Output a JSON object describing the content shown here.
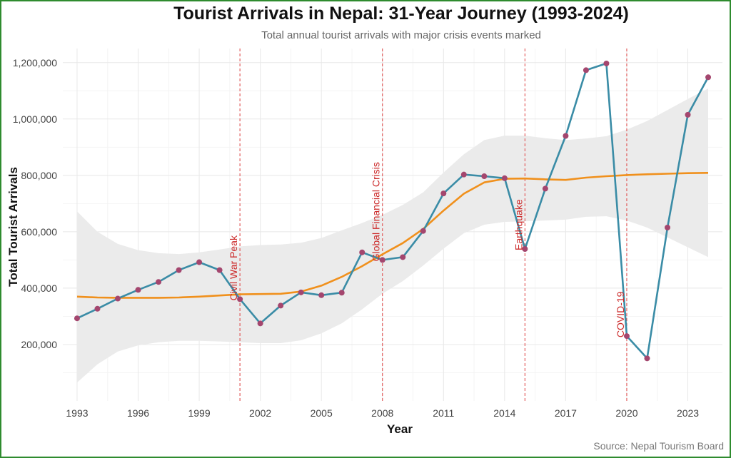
{
  "chart_data": {
    "type": "line",
    "title": "Tourist Arrivals in Nepal: 31-Year Journey (1993-2024)",
    "subtitle": "Total annual tourist arrivals with major crisis events marked",
    "xlabel": "Year",
    "ylabel": "Total Tourist Arrivals",
    "caption": "Source: Nepal Tourism Board",
    "xlim": [
      1992.3,
      2024.7
    ],
    "ylim": [
      0,
      1250000
    ],
    "grid": true,
    "x_ticks": [
      1993,
      1996,
      1999,
      2002,
      2005,
      2008,
      2011,
      2014,
      2017,
      2020,
      2023
    ],
    "y_ticks": [
      200000,
      400000,
      600000,
      800000,
      1000000,
      1200000
    ],
    "y_tick_labels": [
      "200,000",
      "400,000",
      "600,000",
      "800,000",
      "1,000,000",
      "1,200,000"
    ],
    "series": [
      {
        "x": [
          1993,
          1994,
          1995,
          1996,
          1997,
          1998,
          1999,
          2000,
          2001,
          2002,
          2003,
          2004,
          2005,
          2006,
          2007,
          2008,
          2009,
          2010,
          2011,
          2012,
          2013,
          2014,
          2015,
          2016,
          2017,
          2018,
          2019,
          2020,
          2021,
          2022,
          2023,
          2024
        ],
        "values": [
          293000,
          327000,
          363000,
          394000,
          422000,
          464000,
          492000,
          464000,
          361000,
          275000,
          338000,
          385000,
          375000,
          384000,
          527000,
          500000,
          510000,
          603000,
          736000,
          803000,
          797000,
          790000,
          539000,
          753000,
          940000,
          1173000,
          1197000,
          230000,
          151000,
          615000,
          1015000,
          1148000
        ],
        "line_color": "#3a8ca6",
        "point_color": "#a4466e"
      },
      {
        "type": "smooth",
        "x": [
          1993,
          1994,
          1995,
          1996,
          1997,
          1998,
          1999,
          2000,
          2001,
          2002,
          2003,
          2004,
          2005,
          2006,
          2007,
          2008,
          2009,
          2010,
          2011,
          2012,
          2013,
          2014,
          2015,
          2016,
          2017,
          2018,
          2019,
          2020,
          2021,
          2022,
          2023,
          2024
        ],
        "values": [
          370000,
          367000,
          366000,
          366000,
          366000,
          367000,
          370000,
          374000,
          378000,
          379000,
          380000,
          388000,
          409000,
          440000,
          478000,
          520000,
          560000,
          610000,
          675000,
          735000,
          775000,
          788000,
          789000,
          786000,
          784000,
          792000,
          797000,
          801000,
          804000,
          806000,
          808000,
          809000
        ],
        "lower": [
          65000,
          130000,
          175000,
          197000,
          208000,
          213000,
          213000,
          211000,
          208000,
          205000,
          205000,
          215000,
          240000,
          275000,
          325000,
          380000,
          425000,
          480000,
          540000,
          595000,
          625000,
          635000,
          637000,
          640000,
          643000,
          653000,
          655000,
          640000,
          615000,
          580000,
          545000,
          510000
        ],
        "upper": [
          672000,
          600000,
          557000,
          535000,
          524000,
          521000,
          527000,
          537000,
          548000,
          553000,
          555000,
          561000,
          578000,
          605000,
          631000,
          660000,
          695000,
          740000,
          810000,
          875000,
          925000,
          941000,
          941000,
          932000,
          925000,
          931000,
          939000,
          962000,
          993000,
          1032000,
          1071000,
          1108000
        ],
        "line_color": "#f0901c",
        "band_color": "#ebebeb"
      }
    ],
    "events": [
      {
        "x": 2001,
        "label": "Civil War Peak"
      },
      {
        "x": 2008,
        "label": "Global Financial Crisis"
      },
      {
        "x": 2015,
        "label": "Earthquake"
      },
      {
        "x": 2020,
        "label": "COVID-19"
      }
    ],
    "event_color": "#e05050"
  }
}
